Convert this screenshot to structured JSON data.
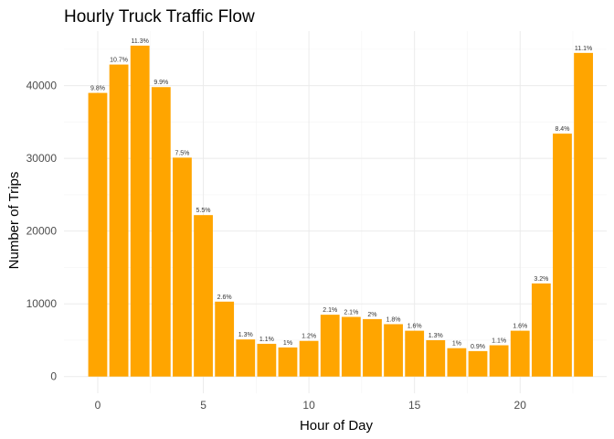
{
  "chart_data": {
    "type": "bar",
    "title": "Hourly Truck Traffic Flow",
    "xlabel": "Hour of Day",
    "ylabel": "Number of Trips",
    "x": [
      0,
      1,
      2,
      3,
      4,
      5,
      6,
      7,
      8,
      9,
      10,
      11,
      12,
      13,
      14,
      15,
      16,
      17,
      18,
      19,
      20,
      21,
      22,
      23
    ],
    "values": [
      39000,
      42900,
      45500,
      39800,
      30100,
      22200,
      10300,
      5100,
      4500,
      4000,
      4900,
      8500,
      8200,
      7900,
      7200,
      6300,
      5000,
      3900,
      3500,
      4300,
      6300,
      12800,
      33400,
      44500
    ],
    "labels": [
      "9.8%",
      "10.7%",
      "11.3%",
      "9.9%",
      "7.5%",
      "5.5%",
      "2.6%",
      "1.3%",
      "1.1%",
      "1%",
      "1.2%",
      "2.1%",
      "2.1%",
      "2%",
      "1.8%",
      "1.6%",
      "1.3%",
      "1%",
      "0.9%",
      "1.1%",
      "1.6%",
      "3.2%",
      "8.4%",
      "11.1%"
    ],
    "xlim": [
      -1.6,
      24.1
    ],
    "ylim": [
      -2300,
      47500
    ],
    "x_ticks": [
      0,
      5,
      10,
      15,
      20
    ],
    "x_minor_ticks": [
      2.5,
      7.5,
      12.5,
      17.5,
      22.5
    ],
    "y_ticks": [
      0,
      10000,
      20000,
      30000,
      40000
    ],
    "y_minor_ticks": [
      5000,
      15000,
      25000,
      35000,
      45000
    ],
    "bar_color": "#FFA500",
    "grid": true,
    "legend": "none"
  }
}
